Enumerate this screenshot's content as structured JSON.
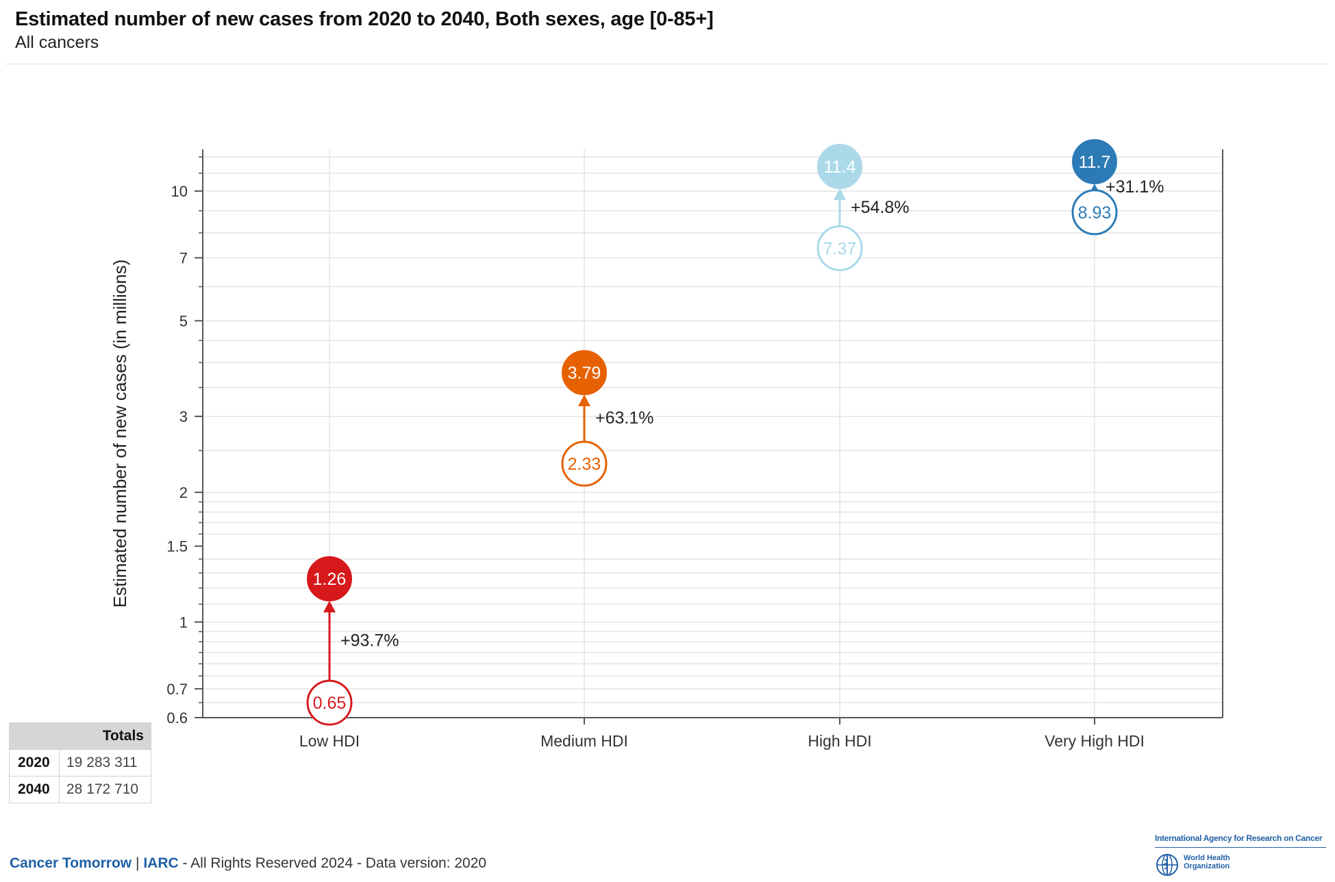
{
  "header": {
    "title": "Estimated number of new cases from 2020 to 2040, Both sexes, age [0-85+]",
    "subtitle": "All cancers"
  },
  "chart_data": {
    "type": "scatter",
    "scale": "log",
    "ylabel": "Estimated number of new cases (in millions)",
    "ylim": [
      0.6,
      12.5
    ],
    "yticks": [
      0.6,
      0.7,
      1,
      1.5,
      2,
      3,
      5,
      7,
      10
    ],
    "ytick_labels": [
      "0.6",
      "0.7",
      "1",
      "1.5",
      "2",
      "3",
      "5",
      "7",
      "10"
    ],
    "categories": [
      "Low HDI",
      "Medium HDI",
      "High HDI",
      "Very High HDI"
    ],
    "series": [
      {
        "name": "2020",
        "values": [
          0.65,
          2.33,
          7.37,
          8.93
        ],
        "labels": [
          "0.65",
          "2.33",
          "7.37",
          "8.93"
        ]
      },
      {
        "name": "2040",
        "values": [
          1.26,
          3.79,
          11.4,
          11.7
        ],
        "labels": [
          "1.26",
          "3.79",
          "11.4",
          "11.7"
        ]
      }
    ],
    "changes": [
      "+93.7%",
      "+63.1%",
      "+54.8%",
      "+31.1%"
    ],
    "colors": [
      "#d7191c",
      "#e66101",
      "#abd9e9",
      "#2c7bb6"
    ]
  },
  "totals": {
    "header": "Totals",
    "rows": [
      {
        "year": "2020",
        "value": "19 283 311"
      },
      {
        "year": "2040",
        "value": "28 172 710"
      }
    ]
  },
  "footer": {
    "brand": "Cancer Tomorrow",
    "sep": "|",
    "org": "IARC",
    "text": "- All Rights Reserved 2024 - Data version: 2020"
  },
  "logo": {
    "iarc": "International Agency for Research on Cancer",
    "who_line1": "World Health",
    "who_line2": "Organization"
  }
}
